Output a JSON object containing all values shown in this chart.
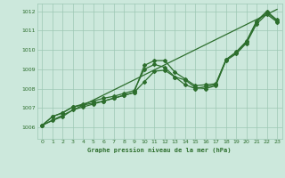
{
  "title": "Graphe pression niveau de la mer (hPa)",
  "text_color": "#2d6e2d",
  "bg_color": "#cce8dc",
  "grid_color": "#9ec8b4",
  "line_color": "#2d6e2d",
  "xlim": [
    -0.5,
    23.5
  ],
  "ylim": [
    1005.4,
    1012.4
  ],
  "yticks": [
    1006,
    1007,
    1008,
    1009,
    1010,
    1011,
    1012
  ],
  "xticks": [
    0,
    1,
    2,
    3,
    4,
    5,
    6,
    7,
    8,
    9,
    10,
    11,
    12,
    13,
    14,
    15,
    16,
    17,
    18,
    19,
    20,
    21,
    22,
    23
  ],
  "line1_x": [
    0,
    1,
    2,
    3,
    4,
    5,
    6,
    7,
    8,
    9,
    10,
    11,
    12,
    13,
    14,
    15,
    16,
    17,
    18,
    19,
    20,
    21,
    22,
    23
  ],
  "line1_y": [
    1006.1,
    1006.55,
    1006.75,
    1007.05,
    1007.15,
    1007.25,
    1007.35,
    1007.5,
    1007.65,
    1007.8,
    1009.2,
    1009.45,
    1009.45,
    1008.85,
    1008.5,
    1008.15,
    1008.2,
    1008.25,
    1009.5,
    1009.9,
    1010.45,
    1011.5,
    1012.0,
    1011.55
  ],
  "line2_x": [
    0,
    1,
    2,
    3,
    4,
    5,
    6,
    7,
    8,
    9,
    10,
    11,
    12,
    13,
    14,
    15,
    16,
    17,
    18,
    19,
    20,
    21,
    22,
    23
  ],
  "line2_y": [
    1006.1,
    1006.55,
    1006.75,
    1007.05,
    1007.2,
    1007.35,
    1007.5,
    1007.6,
    1007.75,
    1007.9,
    1009.0,
    1009.25,
    1009.1,
    1008.6,
    1008.2,
    1008.0,
    1008.1,
    1008.2,
    1009.5,
    1009.85,
    1010.4,
    1011.45,
    1011.95,
    1011.5
  ],
  "line3_x": [
    0,
    1,
    2,
    3,
    4,
    5,
    6,
    7,
    8,
    9,
    10,
    11,
    12,
    13,
    14,
    15,
    16,
    17,
    18,
    19,
    20,
    21,
    22,
    23
  ],
  "line3_y": [
    1006.1,
    1006.35,
    1006.55,
    1006.9,
    1007.05,
    1007.2,
    1007.35,
    1007.5,
    1007.65,
    1007.8,
    1008.35,
    1008.9,
    1008.95,
    1008.6,
    1008.45,
    1008.05,
    1008.0,
    1008.15,
    1009.45,
    1009.8,
    1010.35,
    1011.35,
    1011.85,
    1011.45
  ],
  "line4_x": [
    0,
    23
  ],
  "line4_y": [
    1006.1,
    1012.1
  ]
}
